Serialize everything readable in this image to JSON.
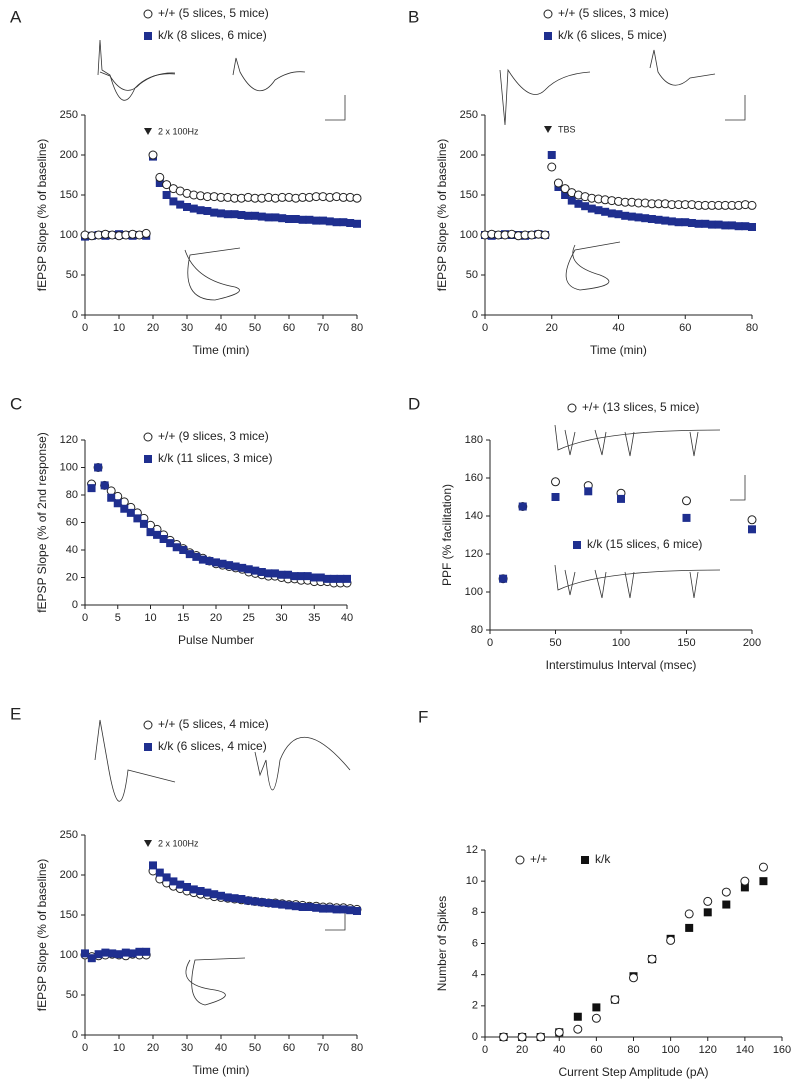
{
  "chart_data": [
    {
      "type": "scatter",
      "panel": "A",
      "annotation": "2 x 100Hz",
      "xlabel": "Time (min)",
      "ylabel": "fEPSP Slope (% of baseline)",
      "xlim": [
        0,
        80
      ],
      "xticks": [
        0,
        10,
        20,
        30,
        40,
        50,
        60,
        70,
        80
      ],
      "ylim": [
        0,
        250
      ],
      "yticks": [
        0,
        50,
        100,
        150,
        200,
        250
      ],
      "x": [
        0,
        2,
        4,
        6,
        8,
        10,
        12,
        14,
        16,
        18,
        20,
        22,
        24,
        26,
        28,
        30,
        32,
        34,
        36,
        38,
        40,
        42,
        44,
        46,
        48,
        50,
        52,
        54,
        56,
        58,
        60,
        62,
        64,
        66,
        68,
        70,
        72,
        74,
        76,
        78,
        80
      ],
      "series": [
        {
          "name": "k/k (8 slices, 6 mice)",
          "color": "#1f2f8f",
          "marker": "square",
          "values": [
            98,
            99,
            100,
            99,
            100,
            101,
            100,
            99,
            100,
            99,
            198,
            165,
            150,
            142,
            138,
            135,
            133,
            131,
            130,
            128,
            127,
            126,
            126,
            125,
            124,
            124,
            123,
            122,
            122,
            121,
            120,
            120,
            119,
            119,
            118,
            118,
            117,
            116,
            116,
            115,
            114
          ]
        },
        {
          "name": "+/+ (5 slices, 5 mice)",
          "color": "#ffffff",
          "marker": "circle",
          "values": [
            100,
            99,
            100,
            101,
            100,
            99,
            100,
            101,
            100,
            102,
            200,
            172,
            163,
            158,
            155,
            152,
            150,
            149,
            148,
            148,
            147,
            147,
            146,
            146,
            147,
            146,
            146,
            147,
            146,
            147,
            147,
            146,
            147,
            147,
            148,
            148,
            147,
            148,
            147,
            147,
            146
          ]
        }
      ]
    },
    {
      "type": "scatter",
      "panel": "B",
      "annotation": "TBS",
      "xlabel": "Time (min)",
      "ylabel": "fEPSP Slope (% of baseline)",
      "xlim": [
        0,
        80
      ],
      "xticks": [
        0,
        20,
        40,
        60,
        80
      ],
      "ylim": [
        0,
        250
      ],
      "yticks": [
        0,
        50,
        100,
        150,
        200,
        250
      ],
      "x": [
        0,
        2,
        4,
        6,
        8,
        10,
        12,
        14,
        16,
        18,
        20,
        22,
        24,
        26,
        28,
        30,
        32,
        34,
        36,
        38,
        40,
        42,
        44,
        46,
        48,
        50,
        52,
        54,
        56,
        58,
        60,
        62,
        64,
        66,
        68,
        70,
        72,
        74,
        76,
        78,
        80
      ],
      "series": [
        {
          "name": "k/k (6 slices, 5 mice)",
          "color": "#1f2f8f",
          "marker": "square",
          "values": [
            100,
            99,
            100,
            101,
            100,
            100,
            99,
            100,
            101,
            100,
            200,
            160,
            150,
            143,
            139,
            136,
            133,
            131,
            129,
            127,
            126,
            124,
            123,
            122,
            121,
            120,
            119,
            118,
            117,
            116,
            116,
            115,
            114,
            114,
            113,
            113,
            112,
            112,
            111,
            111,
            110
          ]
        },
        {
          "name": "+/+ (5 slices, 3 mice)",
          "color": "#ffffff",
          "marker": "circle",
          "values": [
            100,
            101,
            100,
            100,
            101,
            99,
            100,
            100,
            101,
            100,
            185,
            165,
            158,
            153,
            150,
            148,
            146,
            145,
            144,
            143,
            142,
            141,
            141,
            140,
            140,
            139,
            139,
            139,
            138,
            138,
            138,
            138,
            137,
            137,
            137,
            137,
            137,
            137,
            137,
            138,
            137
          ]
        }
      ]
    },
    {
      "type": "scatter",
      "panel": "C",
      "xlabel": "Pulse Number",
      "ylabel": "fEPSP Slope (% of 2nd response)",
      "xlim": [
        0,
        40
      ],
      "xticks": [
        0,
        5,
        10,
        15,
        20,
        25,
        30,
        35,
        40
      ],
      "ylim": [
        0,
        120
      ],
      "yticks": [
        0,
        20,
        40,
        60,
        80,
        100,
        120
      ],
      "x": [
        1,
        2,
        3,
        4,
        5,
        6,
        7,
        8,
        9,
        10,
        11,
        12,
        13,
        14,
        15,
        16,
        17,
        18,
        19,
        20,
        21,
        22,
        23,
        24,
        25,
        26,
        27,
        28,
        29,
        30,
        31,
        32,
        33,
        34,
        35,
        36,
        37,
        38,
        39,
        40
      ],
      "series": [
        {
          "name": "+/+ (9 slices, 3 mice)",
          "color": "#ffffff",
          "marker": "circle",
          "values": [
            88,
            100,
            87,
            83,
            79,
            75,
            71,
            67,
            63,
            58,
            55,
            51,
            47,
            44,
            41,
            38,
            36,
            34,
            32,
            30,
            29,
            28,
            27,
            26,
            24,
            23,
            22,
            21,
            21,
            20,
            19,
            19,
            18,
            18,
            17,
            17,
            17,
            16,
            16,
            16
          ]
        },
        {
          "name": "k/k (11 slices, 3 mice)",
          "color": "#1f2f8f",
          "marker": "square",
          "values": [
            85,
            100,
            87,
            78,
            74,
            70,
            67,
            63,
            59,
            53,
            51,
            48,
            45,
            42,
            40,
            37,
            35,
            33,
            32,
            31,
            30,
            29,
            28,
            27,
            26,
            25,
            24,
            23,
            23,
            22,
            22,
            21,
            21,
            21,
            20,
            20,
            19,
            19,
            19,
            19
          ]
        }
      ]
    },
    {
      "type": "scatter",
      "panel": "D",
      "xlabel": "Interstimulus Interval (msec)",
      "ylabel": "PPF (% facilitation)",
      "xlim": [
        0,
        200
      ],
      "xticks": [
        0,
        50,
        100,
        150,
        200
      ],
      "ylim": [
        80,
        180
      ],
      "yticks": [
        80,
        100,
        120,
        140,
        160,
        180
      ],
      "x": [
        10,
        25,
        50,
        75,
        100,
        150,
        200
      ],
      "series": [
        {
          "name": "+/+ (13 slices, 5 mice)",
          "color": "#ffffff",
          "marker": "circle",
          "values": [
            107,
            145,
            158,
            156,
            152,
            148,
            138
          ]
        },
        {
          "name": "k/k (15 slices, 6 mice)",
          "color": "#1f2f8f",
          "marker": "square",
          "values": [
            107,
            145,
            150,
            153,
            149,
            139,
            133
          ]
        }
      ]
    },
    {
      "type": "scatter",
      "panel": "E",
      "annotation": "2 x 100Hz",
      "xlabel": "Time (min)",
      "ylabel": "fEPSP Slope (% of baseline)",
      "xlim": [
        0,
        80
      ],
      "xticks": [
        0,
        10,
        20,
        30,
        40,
        50,
        60,
        70,
        80
      ],
      "ylim": [
        0,
        250
      ],
      "yticks": [
        0,
        50,
        100,
        150,
        200,
        250
      ],
      "x": [
        0,
        2,
        4,
        6,
        8,
        10,
        12,
        14,
        16,
        18,
        20,
        22,
        24,
        26,
        28,
        30,
        32,
        34,
        36,
        38,
        40,
        42,
        44,
        46,
        48,
        50,
        52,
        54,
        56,
        58,
        60,
        62,
        64,
        66,
        68,
        70,
        72,
        74,
        76,
        78,
        80
      ],
      "series": [
        {
          "name": "+/+ (5 slices, 4 mice)",
          "color": "#ffffff",
          "marker": "circle",
          "values": [
            100,
            98,
            99,
            100,
            101,
            100,
            99,
            101,
            100,
            100,
            205,
            195,
            190,
            186,
            183,
            180,
            178,
            176,
            175,
            173,
            172,
            171,
            170,
            169,
            168,
            167,
            166,
            165,
            165,
            164,
            163,
            163,
            162,
            161,
            161,
            160,
            160,
            159,
            159,
            158,
            157
          ]
        },
        {
          "name": "k/k (6 slices, 4 mice)",
          "color": "#1f2f8f",
          "marker": "square",
          "values": [
            102,
            96,
            101,
            103,
            102,
            101,
            103,
            102,
            104,
            104,
            212,
            203,
            197,
            192,
            188,
            185,
            182,
            180,
            178,
            176,
            174,
            172,
            171,
            170,
            168,
            167,
            166,
            165,
            164,
            163,
            162,
            161,
            160,
            160,
            159,
            158,
            158,
            157,
            157,
            156,
            155
          ]
        }
      ]
    },
    {
      "type": "scatter",
      "panel": "F",
      "xlabel": "Current Step Amplitude (pA)",
      "ylabel": "Number of Spikes",
      "xlim": [
        0,
        160
      ],
      "xticks": [
        0,
        20,
        40,
        60,
        80,
        100,
        120,
        140,
        160
      ],
      "ylim": [
        0,
        12
      ],
      "yticks": [
        0,
        2,
        4,
        6,
        8,
        10,
        12
      ],
      "x": [
        10,
        20,
        30,
        40,
        50,
        60,
        70,
        80,
        90,
        100,
        110,
        120,
        130,
        140,
        150
      ],
      "series": [
        {
          "name": "k/k",
          "color": "#111111",
          "marker": "square",
          "values": [
            0,
            0,
            0,
            0.3,
            1.3,
            1.9,
            2.4,
            3.9,
            5,
            6.3,
            7,
            8,
            8.5,
            9.6,
            10
          ]
        },
        {
          "name": "+/+",
          "color": "#ffffff",
          "marker": "circle",
          "values": [
            0,
            0,
            0,
            0.3,
            0.5,
            1.2,
            2.4,
            3.8,
            5,
            6.2,
            7.9,
            8.7,
            9.3,
            10,
            10.9
          ]
        }
      ]
    }
  ]
}
